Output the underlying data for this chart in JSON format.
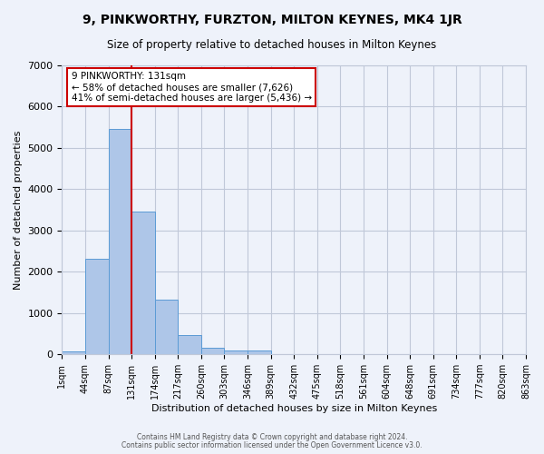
{
  "title": "9, PINKWORTHY, FURZTON, MILTON KEYNES, MK4 1JR",
  "subtitle": "Size of property relative to detached houses in Milton Keynes",
  "xlabel": "Distribution of detached houses by size in Milton Keynes",
  "ylabel": "Number of detached properties",
  "bar_values": [
    70,
    2300,
    5450,
    3450,
    1320,
    470,
    160,
    90,
    90,
    0,
    0,
    0,
    0,
    0,
    0,
    0,
    0,
    0,
    0,
    0
  ],
  "bin_labels": [
    "1sqm",
    "44sqm",
    "87sqm",
    "131sqm",
    "174sqm",
    "217sqm",
    "260sqm",
    "303sqm",
    "346sqm",
    "389sqm",
    "432sqm",
    "475sqm",
    "518sqm",
    "561sqm",
    "604sqm",
    "648sqm",
    "691sqm",
    "734sqm",
    "777sqm",
    "820sqm",
    "863sqm"
  ],
  "ylim": [
    0,
    7000
  ],
  "yticks": [
    0,
    1000,
    2000,
    3000,
    4000,
    5000,
    6000,
    7000
  ],
  "bar_color": "#aec6e8",
  "bar_edge_color": "#5b9bd5",
  "vline_x": 3,
  "marker_label": "9 PINKWORTHY: 131sqm",
  "pct_smaller": "58% of detached houses are smaller (7,626)",
  "pct_larger": "41% of semi-detached houses are larger (5,436)",
  "vline_color": "#cc0000",
  "annotation_box_edge": "#cc0000",
  "bg_color": "#eef2fa",
  "grid_color": "#c0c8d8",
  "footer_line1": "Contains HM Land Registry data © Crown copyright and database right 2024.",
  "footer_line2": "Contains public sector information licensed under the Open Government Licence v3.0."
}
